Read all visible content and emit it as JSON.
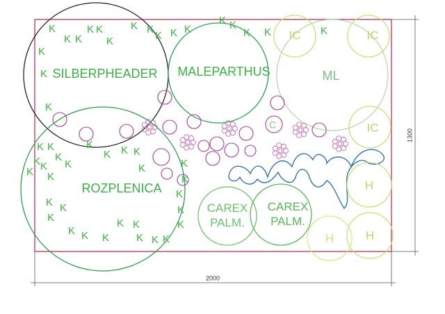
{
  "plant_labels": [
    [
      "SILBERPHEADER"
    ],
    [
      "MALEPARTHUS"
    ],
    [
      "ML"
    ],
    [
      "ROZPLENICA"
    ],
    [
      "CAREX",
      "PALM."
    ],
    [
      "CAREX",
      "PALM."
    ],
    [
      "IC"
    ],
    [
      "IC"
    ],
    [
      "IC"
    ],
    [
      "H"
    ],
    [
      "H"
    ],
    [
      "H"
    ],
    [
      "C"
    ]
  ],
  "k_labels": [
    "K",
    "K",
    "K",
    "K",
    "K",
    "K",
    "K",
    "K",
    "K",
    "K",
    "K",
    "K",
    "K",
    "K",
    "K",
    "K",
    "K",
    "K",
    "K",
    "K",
    "K",
    "K",
    "K",
    "K",
    "K",
    "K",
    "K",
    "K",
    "K",
    "K",
    "K",
    "K",
    "K",
    "K",
    "K",
    "K",
    "K",
    "K",
    "K",
    "K",
    "K",
    "K",
    "K",
    "K",
    "K",
    "K",
    "K",
    "K"
  ],
  "dimensions": {
    "width": 2000,
    "height": 1300
  }
}
